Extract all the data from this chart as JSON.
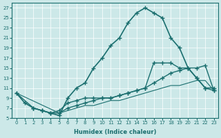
{
  "xlabel": "Humidex (Indice chaleur)",
  "ylabel": "",
  "xlim": [
    -0.5,
    23.5
  ],
  "ylim": [
    5,
    28
  ],
  "yticks": [
    5,
    7,
    9,
    11,
    13,
    15,
    17,
    19,
    21,
    23,
    25,
    27
  ],
  "xticks": [
    0,
    1,
    2,
    3,
    4,
    5,
    6,
    7,
    8,
    9,
    10,
    11,
    12,
    13,
    14,
    15,
    16,
    17,
    18,
    19,
    20,
    21,
    22,
    23
  ],
  "bg_color": "#cce8e8",
  "line_color": "#1a6e6e",
  "grid_color": "#ffffff",
  "lines": [
    {
      "x": [
        0,
        1,
        2,
        3,
        4,
        5,
        6,
        7,
        8,
        9,
        10,
        11,
        12,
        13,
        14,
        15,
        16,
        17,
        18,
        19,
        20,
        21,
        22,
        23
      ],
      "y": [
        10,
        8,
        7,
        6.5,
        6,
        5.5,
        9,
        11,
        12,
        15,
        17,
        19.5,
        21,
        24,
        26,
        27,
        26,
        25,
        21,
        19,
        15,
        13,
        11,
        11
      ],
      "marker": "+",
      "marker_size": 5,
      "linewidth": 1.2
    },
    {
      "x": [
        2,
        3,
        4,
        5,
        6,
        7,
        8,
        9,
        10,
        11,
        12,
        13,
        14,
        15,
        16,
        17,
        18,
        19,
        20,
        21,
        22,
        23
      ],
      "y": [
        7,
        6.5,
        6,
        6.5,
        8,
        8.5,
        9,
        9,
        9,
        9,
        9.5,
        10,
        10.5,
        11,
        16,
        16,
        16,
        15,
        15,
        13,
        11,
        10.5
      ],
      "marker": "+",
      "marker_size": 4,
      "linewidth": 1.0
    },
    {
      "x": [
        0,
        2,
        3,
        4,
        5,
        6,
        7,
        8,
        9,
        10,
        11,
        12,
        13,
        14,
        15,
        16,
        17,
        18,
        19,
        20,
        21,
        22,
        23
      ],
      "y": [
        10,
        7,
        6.5,
        6,
        6,
        7,
        7.5,
        8,
        8.5,
        9,
        9,
        9.5,
        10,
        10.5,
        11,
        12,
        13,
        14,
        14.5,
        15,
        15,
        15.5,
        10.5
      ],
      "marker": "+",
      "marker_size": 4,
      "linewidth": 1.0
    },
    {
      "x": [
        0,
        5,
        6,
        7,
        8,
        9,
        10,
        11,
        12,
        13,
        14,
        15,
        16,
        17,
        18,
        19,
        20,
        21,
        22,
        23
      ],
      "y": [
        10,
        6,
        6.5,
        7,
        7.5,
        7.5,
        8,
        8.5,
        8.5,
        9,
        9.5,
        10,
        10.5,
        11,
        11.5,
        11.5,
        12,
        12.5,
        12.5,
        10.5
      ],
      "marker": null,
      "marker_size": 0,
      "linewidth": 0.8
    }
  ]
}
